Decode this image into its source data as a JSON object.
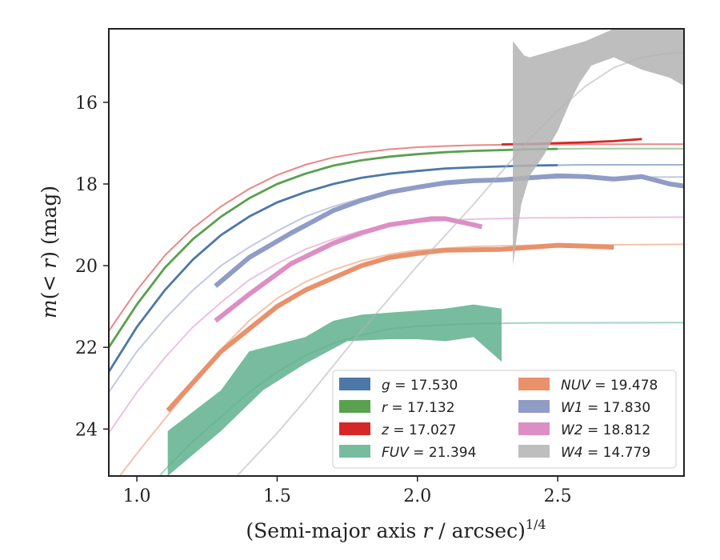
{
  "chart_data": {
    "type": "line",
    "xlabel": "(Semi-major axis r / arcsec)^1/4",
    "ylabel": "m(< r) (mag)",
    "xlim": [
      0.9,
      2.95
    ],
    "ylim": [
      25.15,
      14.2
    ],
    "y_inverted": true,
    "xticks": [
      "1.0",
      "1.5",
      "2.0",
      "2.5"
    ],
    "yticks": [
      "16",
      "18",
      "20",
      "22",
      "24"
    ],
    "grid": false,
    "legend_position": "lower-right",
    "series": [
      {
        "name": "g = 17.530",
        "band": "g",
        "value": "17.530",
        "color": "#4c78a8",
        "model": [
          [
            0.9,
            22.6
          ],
          [
            1.0,
            21.5
          ],
          [
            1.1,
            20.6
          ],
          [
            1.2,
            19.85
          ],
          [
            1.3,
            19.25
          ],
          [
            1.4,
            18.8
          ],
          [
            1.5,
            18.45
          ],
          [
            1.6,
            18.2
          ],
          [
            1.7,
            18.0
          ],
          [
            1.8,
            17.85
          ],
          [
            1.9,
            17.75
          ],
          [
            2.0,
            17.68
          ],
          [
            2.1,
            17.62
          ],
          [
            2.2,
            17.59
          ],
          [
            2.3,
            17.57
          ],
          [
            2.4,
            17.55
          ],
          [
            2.5,
            17.54
          ],
          [
            2.6,
            17.53
          ],
          [
            2.8,
            17.53
          ],
          [
            2.95,
            17.53
          ]
        ],
        "observed_end": 2.53
      },
      {
        "name": "r = 17.132",
        "band": "r",
        "value": "17.132",
        "color": "#59a14f",
        "model": [
          [
            0.9,
            22.0
          ],
          [
            1.0,
            20.95
          ],
          [
            1.1,
            20.05
          ],
          [
            1.2,
            19.35
          ],
          [
            1.3,
            18.8
          ],
          [
            1.4,
            18.35
          ],
          [
            1.5,
            18.0
          ],
          [
            1.6,
            17.75
          ],
          [
            1.7,
            17.55
          ],
          [
            1.8,
            17.42
          ],
          [
            1.9,
            17.33
          ],
          [
            2.0,
            17.27
          ],
          [
            2.1,
            17.22
          ],
          [
            2.2,
            17.19
          ],
          [
            2.3,
            17.17
          ],
          [
            2.4,
            17.15
          ],
          [
            2.5,
            17.14
          ],
          [
            2.6,
            17.135
          ],
          [
            2.8,
            17.132
          ],
          [
            2.95,
            17.132
          ]
        ],
        "observed_end": 2.57
      },
      {
        "name": "z = 17.027",
        "band": "z",
        "value": "17.027",
        "color": "#d62728",
        "model": [
          [
            0.9,
            21.6
          ],
          [
            1.0,
            20.6
          ],
          [
            1.1,
            19.75
          ],
          [
            1.2,
            19.08
          ],
          [
            1.3,
            18.55
          ],
          [
            1.4,
            18.12
          ],
          [
            1.5,
            17.78
          ],
          [
            1.6,
            17.53
          ],
          [
            1.7,
            17.35
          ],
          [
            1.8,
            17.23
          ],
          [
            1.9,
            17.15
          ],
          [
            2.0,
            17.1
          ],
          [
            2.1,
            17.07
          ],
          [
            2.2,
            17.05
          ],
          [
            2.3,
            17.04
          ],
          [
            2.4,
            17.035
          ],
          [
            2.5,
            17.03
          ],
          [
            2.6,
            17.028
          ],
          [
            2.8,
            17.027
          ],
          [
            2.95,
            17.027
          ]
        ],
        "observed": [
          [
            2.3,
            17.03
          ],
          [
            2.4,
            17.02
          ],
          [
            2.5,
            17.0
          ],
          [
            2.6,
            16.98
          ],
          [
            2.7,
            16.95
          ],
          [
            2.8,
            16.9
          ]
        ]
      },
      {
        "name": "FUV = 21.394",
        "band": "FUV",
        "value": "21.394",
        "color": "#5fb08e",
        "model": [
          [
            0.9,
            26.5
          ],
          [
            1.0,
            25.8
          ],
          [
            1.1,
            25.0
          ],
          [
            1.2,
            24.3
          ],
          [
            1.3,
            23.7
          ],
          [
            1.4,
            23.1
          ],
          [
            1.5,
            22.6
          ],
          [
            1.6,
            22.2
          ],
          [
            1.7,
            21.9
          ],
          [
            1.8,
            21.7
          ],
          [
            1.9,
            21.55
          ],
          [
            2.0,
            21.48
          ],
          [
            2.2,
            21.42
          ],
          [
            2.4,
            21.4
          ],
          [
            2.95,
            21.394
          ]
        ],
        "band_upper": [
          [
            1.11,
            24.05
          ],
          [
            1.3,
            23.05
          ],
          [
            1.4,
            22.1
          ],
          [
            1.6,
            21.75
          ],
          [
            1.7,
            21.35
          ],
          [
            1.8,
            21.2
          ],
          [
            2.0,
            21.1
          ],
          [
            2.1,
            21.05
          ],
          [
            2.2,
            20.95
          ],
          [
            2.3,
            21.05
          ]
        ],
        "band_lower": [
          [
            1.11,
            25.15
          ],
          [
            1.3,
            24.05
          ],
          [
            1.45,
            23.05
          ],
          [
            1.6,
            22.4
          ],
          [
            1.75,
            21.85
          ],
          [
            1.9,
            21.8
          ],
          [
            2.0,
            21.8
          ],
          [
            2.1,
            21.85
          ],
          [
            2.2,
            21.75
          ],
          [
            2.3,
            22.35
          ]
        ]
      },
      {
        "name": "NUV = 19.478",
        "band": "NUV",
        "value": "19.478",
        "color": "#e8916a",
        "model": [
          [
            0.9,
            25.5
          ],
          [
            1.0,
            24.6
          ],
          [
            1.1,
            23.75
          ],
          [
            1.2,
            22.9
          ],
          [
            1.3,
            22.05
          ],
          [
            1.4,
            21.35
          ],
          [
            1.5,
            20.8
          ],
          [
            1.6,
            20.4
          ],
          [
            1.7,
            20.1
          ],
          [
            1.8,
            19.88
          ],
          [
            1.9,
            19.72
          ],
          [
            2.0,
            19.62
          ],
          [
            2.2,
            19.53
          ],
          [
            2.4,
            19.5
          ],
          [
            2.95,
            19.478
          ]
        ],
        "observed": [
          [
            1.11,
            23.55
          ],
          [
            1.3,
            22.1
          ],
          [
            1.5,
            21.0
          ],
          [
            1.6,
            20.6
          ],
          [
            1.7,
            20.3
          ],
          [
            1.8,
            20.0
          ],
          [
            1.9,
            19.8
          ],
          [
            2.0,
            19.7
          ],
          [
            2.1,
            19.62
          ],
          [
            2.3,
            19.6
          ],
          [
            2.5,
            19.5
          ],
          [
            2.6,
            19.52
          ],
          [
            2.7,
            19.55
          ]
        ]
      },
      {
        "name": "W1 = 17.830",
        "band": "W1",
        "value": "17.830",
        "color": "#8f9cc6",
        "model": [
          [
            0.9,
            23.1
          ],
          [
            1.0,
            22.1
          ],
          [
            1.1,
            21.3
          ],
          [
            1.2,
            20.6
          ],
          [
            1.3,
            20.0
          ],
          [
            1.4,
            19.55
          ],
          [
            1.5,
            19.15
          ],
          [
            1.6,
            18.8
          ],
          [
            1.7,
            18.55
          ],
          [
            1.8,
            18.35
          ],
          [
            1.9,
            18.2
          ],
          [
            2.0,
            18.08
          ],
          [
            2.2,
            17.95
          ],
          [
            2.4,
            17.87
          ],
          [
            2.6,
            17.84
          ],
          [
            2.95,
            17.83
          ]
        ],
        "observed": [
          [
            1.28,
            20.5
          ],
          [
            1.4,
            19.8
          ],
          [
            1.55,
            19.2
          ],
          [
            1.7,
            18.65
          ],
          [
            1.8,
            18.4
          ],
          [
            1.9,
            18.2
          ],
          [
            2.0,
            18.08
          ],
          [
            2.1,
            17.97
          ],
          [
            2.2,
            17.92
          ],
          [
            2.3,
            17.9
          ],
          [
            2.4,
            17.85
          ],
          [
            2.5,
            17.8
          ],
          [
            2.6,
            17.82
          ],
          [
            2.7,
            17.88
          ],
          [
            2.8,
            17.82
          ],
          [
            2.9,
            18.0
          ],
          [
            2.95,
            18.05
          ]
        ]
      },
      {
        "name": "W2 = 18.812",
        "band": "W2",
        "value": "18.812",
        "color": "#dc8fc4",
        "model": [
          [
            0.9,
            24.1
          ],
          [
            1.0,
            23.1
          ],
          [
            1.1,
            22.25
          ],
          [
            1.2,
            21.5
          ],
          [
            1.3,
            20.9
          ],
          [
            1.4,
            20.35
          ],
          [
            1.5,
            19.95
          ],
          [
            1.6,
            19.6
          ],
          [
            1.7,
            19.35
          ],
          [
            1.8,
            19.15
          ],
          [
            1.9,
            19.02
          ],
          [
            2.0,
            18.93
          ],
          [
            2.2,
            18.86
          ],
          [
            2.4,
            18.83
          ],
          [
            2.95,
            18.812
          ]
        ],
        "observed": [
          [
            1.28,
            21.35
          ],
          [
            1.4,
            20.7
          ],
          [
            1.55,
            19.95
          ],
          [
            1.7,
            19.45
          ],
          [
            1.8,
            19.2
          ],
          [
            1.9,
            19.0
          ],
          [
            2.0,
            18.9
          ],
          [
            2.05,
            18.85
          ],
          [
            2.1,
            18.85
          ],
          [
            2.2,
            19.0
          ],
          [
            2.23,
            19.05
          ]
        ]
      },
      {
        "name": "W4 = 14.779",
        "band": "W4",
        "value": "14.779",
        "color": "#b3b3b3",
        "model": [
          [
            1.35,
            25.2
          ],
          [
            1.5,
            24.1
          ],
          [
            1.6,
            23.3
          ],
          [
            1.7,
            22.45
          ],
          [
            1.8,
            21.6
          ],
          [
            1.9,
            20.8
          ],
          [
            2.0,
            20.0
          ],
          [
            2.1,
            19.25
          ],
          [
            2.2,
            18.5
          ],
          [
            2.3,
            17.7
          ],
          [
            2.4,
            16.9
          ],
          [
            2.5,
            16.2
          ],
          [
            2.6,
            15.6
          ],
          [
            2.7,
            15.15
          ],
          [
            2.8,
            14.9
          ],
          [
            2.9,
            14.8
          ],
          [
            2.95,
            14.779
          ]
        ],
        "band_upper": [
          [
            2.34,
            14.5
          ],
          [
            2.38,
            14.85
          ],
          [
            2.4,
            14.9
          ],
          [
            2.5,
            14.7
          ],
          [
            2.6,
            14.5
          ],
          [
            2.7,
            14.2
          ],
          [
            2.95,
            14.2
          ]
        ],
        "band_lower": [
          [
            2.34,
            20.0
          ],
          [
            2.37,
            18.5
          ],
          [
            2.4,
            17.8
          ],
          [
            2.45,
            17.3
          ],
          [
            2.5,
            16.7
          ],
          [
            2.55,
            15.9
          ],
          [
            2.58,
            15.5
          ],
          [
            2.62,
            15.1
          ],
          [
            2.7,
            14.9
          ],
          [
            2.8,
            15.2
          ],
          [
            2.9,
            15.4
          ],
          [
            2.95,
            15.6
          ]
        ]
      }
    ],
    "legend": {
      "left": [
        "g = 17.530",
        "r = 17.132",
        "z = 17.027",
        "FUV = 21.394"
      ],
      "right": [
        "NUV = 19.478",
        "W1 = 17.830",
        "W2 = 18.812",
        "W4 = 14.779"
      ]
    }
  }
}
